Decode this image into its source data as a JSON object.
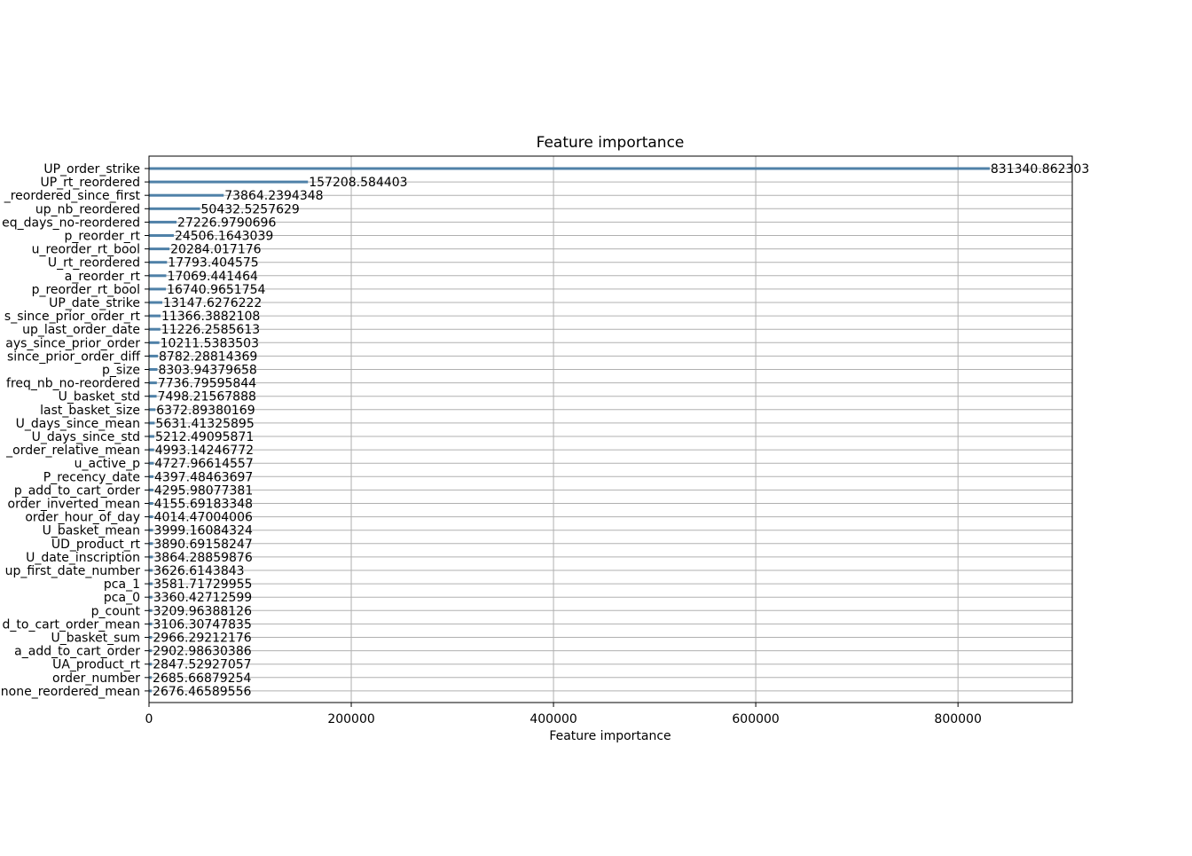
{
  "chart_data": {
    "type": "bar",
    "orientation": "horizontal",
    "title": "Feature importance",
    "xlabel": "Feature importance",
    "ylabel": "",
    "xlim": [
      0,
      913000
    ],
    "xticks": [
      0,
      200000,
      400000,
      600000,
      800000
    ],
    "xtick_labels": [
      "0",
      "200000",
      "400000",
      "600000",
      "800000"
    ],
    "grid": true,
    "legend": "none",
    "bar_color": "#4f81a8",
    "categories": [
      "UP_order_strike",
      "UP_rt_reordered",
      "_reordered_since_first",
      "up_nb_reordered",
      "eq_days_no-reordered",
      "p_reorder_rt",
      "u_reorder_rt_bool",
      "U_rt_reordered",
      "a_reorder_rt",
      "p_reorder_rt_bool",
      "UP_date_strike",
      "s_since_prior_order_rt",
      "up_last_order_date",
      "ays_since_prior_order",
      "since_prior_order_diff",
      "p_size",
      "freq_nb_no-reordered",
      "U_basket_std",
      "last_basket_size",
      "U_days_since_mean",
      "U_days_since_std",
      "_order_relative_mean",
      "u_active_p",
      "P_recency_date",
      "p_add_to_cart_order",
      "order_inverted_mean",
      "order_hour_of_day",
      "U_basket_mean",
      "UD_product_rt",
      "U_date_inscription",
      "up_first_date_number",
      "pca_1",
      "pca_0",
      "p_count",
      "d_to_cart_order_mean",
      "U_basket_sum",
      "a_add_to_cart_order",
      "UA_product_rt",
      "order_number",
      "none_reordered_mean"
    ],
    "values": [
      831340.862303,
      157208.584403,
      73864.2394348,
      50432.5257629,
      27226.9790696,
      24506.1643039,
      20284.017176,
      17793.404575,
      17069.441464,
      16740.9651754,
      13147.6276222,
      11366.3882108,
      11226.2585613,
      10211.5383503,
      8782.28814369,
      8303.94379658,
      7736.79595844,
      7498.21567888,
      6372.89380169,
      5631.41325895,
      5212.49095871,
      4993.14246772,
      4727.96614557,
      4397.48463697,
      4295.98077381,
      4155.69183348,
      4014.47004006,
      3999.16084324,
      3890.69158247,
      3864.28859876,
      3626.6143843,
      3581.71729955,
      3360.42712599,
      3209.96388126,
      3106.30747835,
      2966.29212176,
      2902.98630386,
      2847.52927057,
      2685.66879254,
      2676.46589556
    ],
    "value_labels": [
      "831340.862303",
      "157208.584403",
      "73864.2394348",
      "50432.5257629",
      "27226.9790696",
      "24506.1643039",
      "20284.017176",
      "17793.404575",
      "17069.441464",
      "16740.9651754",
      "13147.6276222",
      "11366.3882108",
      "11226.2585613",
      "10211.5383503",
      "8782.28814369",
      "8303.94379658",
      "7736.79595844",
      "7498.21567888",
      "6372.89380169",
      "5631.41325895",
      "5212.49095871",
      "4993.14246772",
      "4727.96614557",
      "4397.48463697",
      "4295.98077381",
      "4155.69183348",
      "4014.47004006",
      "3999.16084324",
      "3890.69158247",
      "3864.28859876",
      "3626.6143843",
      "3581.71729955",
      "3360.42712599",
      "3209.96388126",
      "3106.30747835",
      "2966.29212176",
      "2902.98630386",
      "2847.52927057",
      "2685.66879254",
      "2676.46589556"
    ]
  }
}
